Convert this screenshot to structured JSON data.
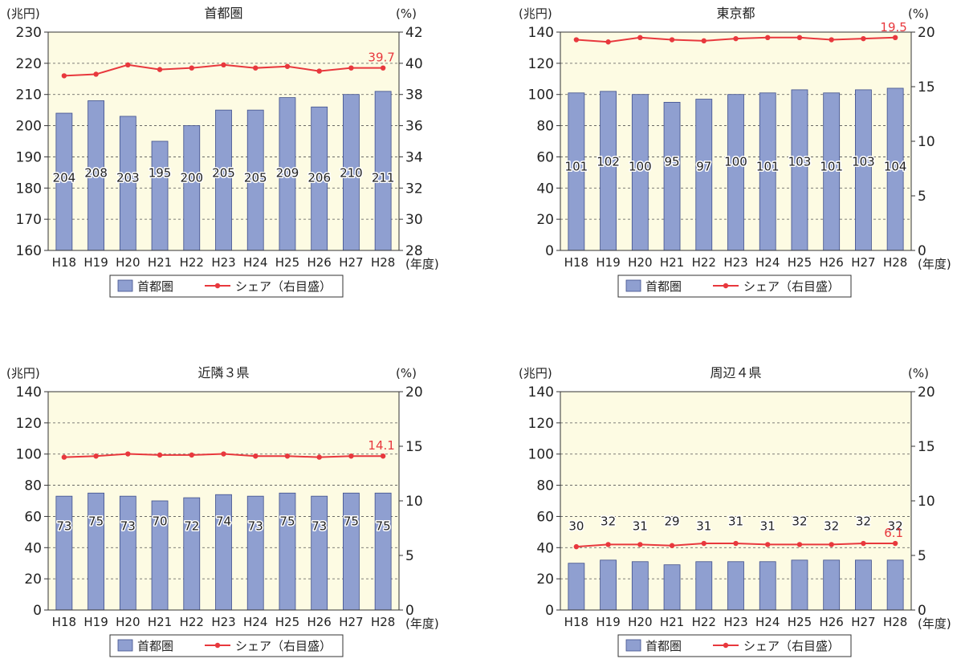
{
  "x_unit": "(年度)",
  "y_unit_left": "(兆円)",
  "y_unit_right": "(%)",
  "legend": {
    "bar_label": "首都圏",
    "line_label": "シェア（右目盛）"
  },
  "colors": {
    "bar_fill": "#8f9fd0",
    "bar_stroke": "#3f4f8c",
    "line": "#e8383d",
    "plot_bg": "#fdfbe3",
    "highlight_text": "#e8383d"
  },
  "chart_data": [
    {
      "type": "bar",
      "title": "首都圏",
      "categories": [
        "H18",
        "H19",
        "H20",
        "H21",
        "H22",
        "H23",
        "H24",
        "H25",
        "H26",
        "H27",
        "H28"
      ],
      "series": [
        {
          "name": "首都圏",
          "axis": "left",
          "values": [
            204,
            208,
            203,
            195,
            200,
            205,
            205,
            209,
            206,
            210,
            211
          ]
        },
        {
          "name": "シェア（右目盛）",
          "type": "line",
          "axis": "right",
          "values": [
            39.2,
            39.3,
            39.9,
            39.6,
            39.7,
            39.9,
            39.7,
            39.8,
            39.5,
            39.7,
            39.7
          ]
        }
      ],
      "bar_labels": [
        "204",
        "208",
        "203",
        "195",
        "200",
        "205",
        "205",
        "209",
        "206",
        "210",
        "211"
      ],
      "last_share_label": "39.7",
      "ylim_left": [
        160,
        230
      ],
      "yticks_left": [
        160,
        170,
        180,
        190,
        200,
        210,
        220,
        230
      ],
      "ylim_right": [
        28,
        42
      ],
      "yticks_right": [
        28,
        30,
        32,
        34,
        36,
        38,
        40,
        42
      ],
      "grid": true
    },
    {
      "type": "bar",
      "title": "東京都",
      "categories": [
        "H18",
        "H19",
        "H20",
        "H21",
        "H22",
        "H23",
        "H24",
        "H25",
        "H26",
        "H27",
        "H28"
      ],
      "series": [
        {
          "name": "首都圏",
          "axis": "left",
          "values": [
            101,
            102,
            100,
            95,
            97,
            100,
            101,
            103,
            101,
            103,
            104
          ]
        },
        {
          "name": "シェア（右目盛）",
          "type": "line",
          "axis": "right",
          "values": [
            19.3,
            19.1,
            19.5,
            19.3,
            19.2,
            19.4,
            19.5,
            19.5,
            19.3,
            19.4,
            19.5
          ]
        }
      ],
      "bar_labels": [
        "101",
        "102",
        "100",
        "95",
        "97",
        "100",
        "101",
        "103",
        "101",
        "103",
        "104"
      ],
      "last_share_label": "19.5",
      "ylim_left": [
        0,
        140
      ],
      "yticks_left": [
        0,
        20,
        40,
        60,
        80,
        100,
        120,
        140
      ],
      "ylim_right": [
        0,
        20
      ],
      "yticks_right": [
        0,
        5,
        10,
        15,
        20
      ],
      "grid": true
    },
    {
      "type": "bar",
      "title": "近隣３県",
      "categories": [
        "H18",
        "H19",
        "H20",
        "H21",
        "H22",
        "H23",
        "H24",
        "H25",
        "H26",
        "H27",
        "H28"
      ],
      "series": [
        {
          "name": "首都圏",
          "axis": "left",
          "values": [
            73,
            75,
            73,
            70,
            72,
            74,
            73,
            75,
            73,
            75,
            75
          ]
        },
        {
          "name": "シェア（右目盛）",
          "type": "line",
          "axis": "right",
          "values": [
            14.0,
            14.1,
            14.3,
            14.2,
            14.2,
            14.3,
            14.1,
            14.1,
            14.0,
            14.1,
            14.1
          ]
        }
      ],
      "bar_labels": [
        "73",
        "75",
        "73",
        "70",
        "72",
        "74",
        "73",
        "75",
        "73",
        "75",
        "75"
      ],
      "last_share_label": "14.1",
      "ylim_left": [
        0,
        140
      ],
      "yticks_left": [
        0,
        20,
        40,
        60,
        80,
        100,
        120,
        140
      ],
      "ylim_right": [
        0,
        20
      ],
      "yticks_right": [
        0,
        5,
        10,
        15,
        20
      ],
      "grid": true
    },
    {
      "type": "bar",
      "title": "周辺４県",
      "categories": [
        "H18",
        "H19",
        "H20",
        "H21",
        "H22",
        "H23",
        "H24",
        "H25",
        "H26",
        "H27",
        "H28"
      ],
      "series": [
        {
          "name": "首都圏",
          "axis": "left",
          "values": [
            30,
            32,
            31,
            29,
            31,
            31,
            31,
            32,
            32,
            32,
            32
          ]
        },
        {
          "name": "シェア（右目盛）",
          "type": "line",
          "axis": "right",
          "values": [
            5.8,
            6.0,
            6.0,
            5.9,
            6.1,
            6.1,
            6.0,
            6.0,
            6.0,
            6.1,
            6.1
          ]
        }
      ],
      "bar_labels": [
        "30",
        "32",
        "31",
        "29",
        "31",
        "31",
        "31",
        "32",
        "32",
        "32",
        "32"
      ],
      "last_share_label": "6.1",
      "ylim_left": [
        0,
        140
      ],
      "yticks_left": [
        0,
        20,
        40,
        60,
        80,
        100,
        120,
        140
      ],
      "ylim_right": [
        0,
        20
      ],
      "yticks_right": [
        0,
        5,
        10,
        15,
        20
      ],
      "grid": true
    }
  ]
}
